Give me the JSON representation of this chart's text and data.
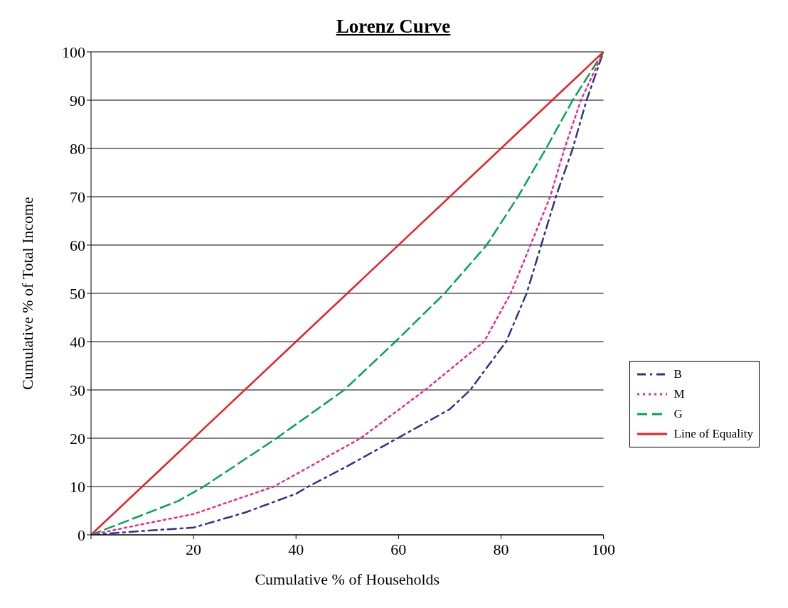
{
  "chart_data": {
    "type": "line",
    "title": "Lorenz Curve",
    "xlabel": "Cumulative % of Households",
    "ylabel": "Cumulative % of Total Income",
    "xlim": [
      0,
      100
    ],
    "ylim": [
      0,
      100
    ],
    "xticks": [
      {
        "value": 0,
        "label": null
      },
      20,
      40,
      60,
      80,
      100
    ],
    "yticks": [
      0,
      10,
      20,
      30,
      40,
      50,
      60,
      70,
      80,
      90,
      100
    ],
    "grid": "y",
    "legend": "right",
    "series": [
      {
        "name": "B",
        "color": "#2e3192",
        "line_style": "dashdot",
        "x": [
          0,
          10,
          20,
          30,
          40,
          42.4,
          50,
          59.8,
          70,
          74,
          81,
          85,
          90.7,
          94,
          96.7,
          100
        ],
        "values": [
          0,
          0.8,
          1.5,
          4.6,
          8.5,
          10,
          14.2,
          20,
          26,
          30,
          40,
          50,
          70,
          80,
          90,
          100
        ]
      },
      {
        "name": "M",
        "color": "#ec268f",
        "line_style": "dotted",
        "x": [
          0,
          10,
          20,
          35.7,
          52.6,
          65.2,
          76.7,
          81.9,
          89.6,
          92.4,
          95.6,
          100
        ],
        "values": [
          0,
          2.2,
          4.3,
          10,
          20,
          30,
          40,
          50,
          70,
          80,
          90,
          100
        ]
      },
      {
        "name": "G",
        "color": "#00a651",
        "line_style": "dashed",
        "x": [
          0,
          10,
          17,
          22,
          36.2,
          49.4,
          59.4,
          69,
          77.2,
          83.3,
          88.8,
          94,
          100
        ],
        "values": [
          0,
          4.1,
          7,
          10,
          20,
          30,
          40,
          50,
          60,
          70,
          80,
          90,
          100
        ]
      },
      {
        "name": "Line of Equality",
        "color": "#ed1c24",
        "line_style": "solid",
        "x": [
          0,
          100
        ],
        "values": [
          0,
          100
        ]
      }
    ]
  }
}
